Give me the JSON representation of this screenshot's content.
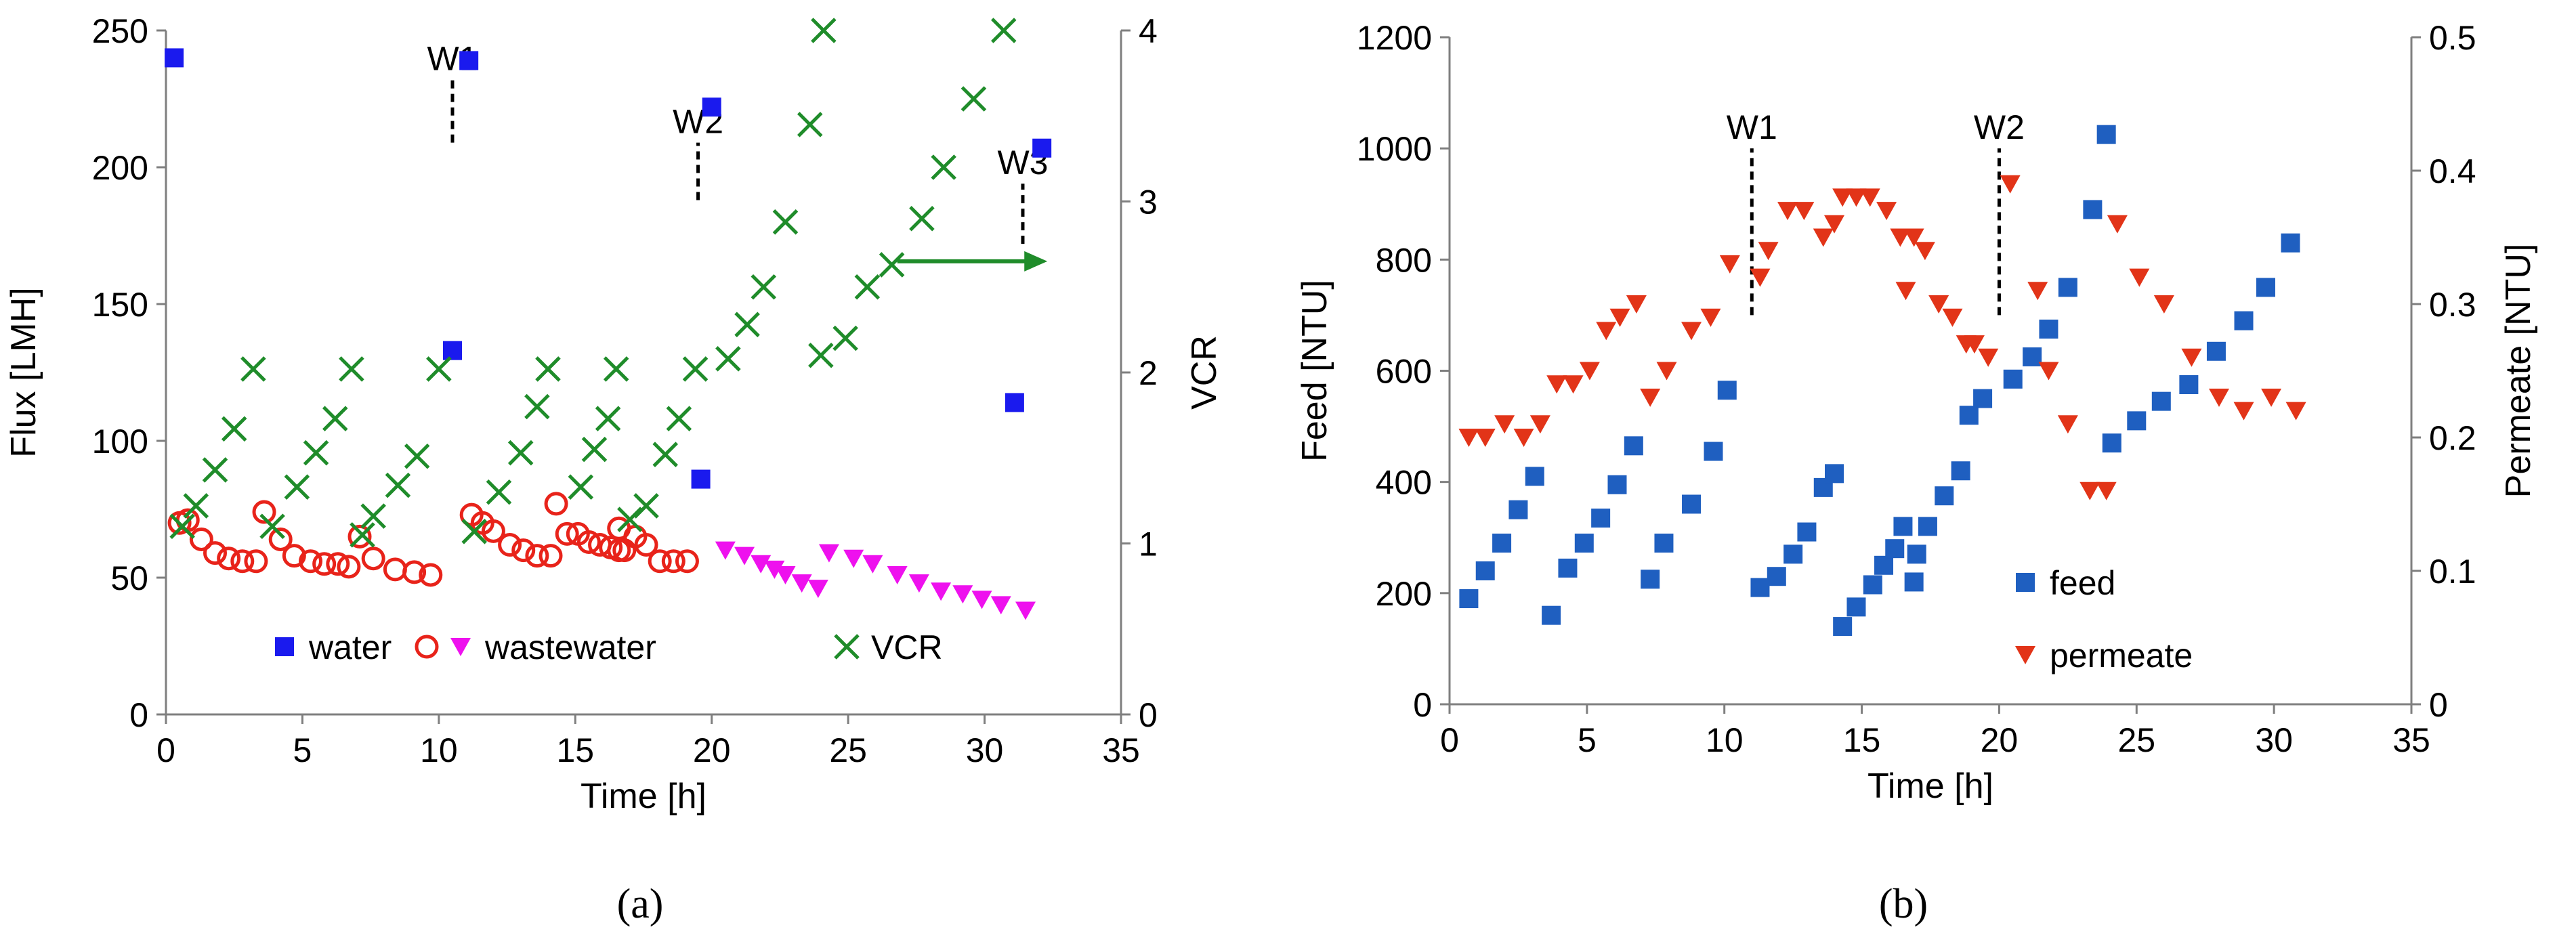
{
  "figure": {
    "panel_a_label": "(a)",
    "panel_b_label": "(b)"
  },
  "colors": {
    "water": "#1a1aee",
    "wastewater_circle": "#e8231a",
    "wastewater_triangle": "#ee11ee",
    "vcr": "#1f8c2a",
    "arrow": "#1f8c2a",
    "feed": "#1f5fc0",
    "permeate": "#e23418",
    "axis": "#7f7f7f"
  },
  "chart_data": [
    {
      "type": "scatter",
      "panel": "a",
      "xlabel": "Time [h]",
      "ylabel": "Flux [LMH]",
      "y2label": "VCR",
      "xlim": [
        0,
        35
      ],
      "ylim": [
        0,
        250
      ],
      "y2lim": [
        0,
        4
      ],
      "xticks": [
        "0",
        "5",
        "10",
        "15",
        "20",
        "25",
        "30",
        "35"
      ],
      "yticks": [
        "0",
        "50",
        "100",
        "150",
        "200",
        "250"
      ],
      "y2ticks": [
        "0",
        "1",
        "2",
        "3",
        "4"
      ],
      "grid": false,
      "legend": [
        "water",
        "wastewater",
        "VCR"
      ],
      "annotations": [
        {
          "label": "W1",
          "x": 10.5,
          "y_from": 209,
          "y_to": 232
        },
        {
          "label": "W2",
          "x": 19.5,
          "y_from": 188,
          "y_to": 209
        },
        {
          "label": "W3",
          "x": 31.4,
          "y_from": 172,
          "y_to": 194
        }
      ],
      "arrow": {
        "from": [
          26.8,
          2.65
        ],
        "to": [
          32.3,
          2.65
        ],
        "axis": "y2"
      },
      "series": [
        {
          "name": "water",
          "marker": "square",
          "axis": "y",
          "points": [
            [
              0.3,
              240
            ],
            [
              11.1,
              239
            ],
            [
              20.0,
              222
            ],
            [
              32.1,
              207
            ],
            [
              10.5,
              133
            ],
            [
              19.6,
              86
            ],
            [
              31.1,
              114
            ]
          ]
        },
        {
          "name": "wastewater",
          "marker": "circle-open",
          "axis": "y",
          "points": [
            [
              0.5,
              70
            ],
            [
              0.8,
              71
            ],
            [
              1.3,
              64
            ],
            [
              1.8,
              59
            ],
            [
              2.3,
              57
            ],
            [
              2.8,
              56
            ],
            [
              3.3,
              56
            ],
            [
              3.6,
              74
            ],
            [
              4.2,
              64
            ],
            [
              4.7,
              58
            ],
            [
              5.3,
              56
            ],
            [
              5.8,
              55
            ],
            [
              6.3,
              55
            ],
            [
              6.7,
              54
            ],
            [
              7.1,
              65
            ],
            [
              7.6,
              57
            ],
            [
              8.4,
              53
            ],
            [
              9.1,
              52
            ],
            [
              9.7,
              51
            ],
            [
              11.2,
              73
            ],
            [
              11.6,
              70
            ],
            [
              12.0,
              67
            ],
            [
              12.6,
              62
            ],
            [
              13.1,
              60
            ],
            [
              13.6,
              58
            ],
            [
              14.1,
              58
            ],
            [
              14.3,
              77
            ],
            [
              14.7,
              66
            ],
            [
              15.1,
              66
            ],
            [
              15.5,
              63
            ],
            [
              15.9,
              62
            ],
            [
              16.3,
              61
            ],
            [
              16.6,
              60
            ],
            [
              16.6,
              68
            ],
            [
              16.8,
              60
            ],
            [
              17.2,
              65
            ],
            [
              17.6,
              62
            ],
            [
              18.1,
              56
            ],
            [
              18.6,
              56
            ],
            [
              19.1,
              56
            ]
          ]
        },
        {
          "name": "wastewater",
          "marker": "triangle-down",
          "axis": "y",
          "points": [
            [
              20.5,
              60
            ],
            [
              21.2,
              58
            ],
            [
              21.8,
              55
            ],
            [
              22.3,
              53
            ],
            [
              22.7,
              51
            ],
            [
              23.3,
              48
            ],
            [
              23.9,
              46
            ],
            [
              24.3,
              59
            ],
            [
              25.2,
              57
            ],
            [
              25.9,
              55
            ],
            [
              26.8,
              51
            ],
            [
              27.6,
              48
            ],
            [
              28.4,
              45
            ],
            [
              29.2,
              44
            ],
            [
              29.9,
              42
            ],
            [
              30.6,
              40
            ],
            [
              31.5,
              38
            ]
          ]
        },
        {
          "name": "VCR",
          "marker": "x",
          "axis": "y2",
          "points": [
            [
              0.6,
              1.1
            ],
            [
              1.1,
              1.22
            ],
            [
              1.8,
              1.43
            ],
            [
              2.5,
              1.67
            ],
            [
              3.2,
              2.02
            ],
            [
              3.9,
              1.1
            ],
            [
              4.8,
              1.33
            ],
            [
              5.5,
              1.53
            ],
            [
              6.2,
              1.73
            ],
            [
              6.8,
              2.02
            ],
            [
              7.2,
              1.05
            ],
            [
              7.6,
              1.16
            ],
            [
              8.5,
              1.34
            ],
            [
              9.2,
              1.51
            ],
            [
              10.0,
              2.02
            ],
            [
              11.3,
              1.07
            ],
            [
              12.2,
              1.3
            ],
            [
              13.0,
              1.53
            ],
            [
              13.6,
              1.8
            ],
            [
              14.0,
              2.02
            ],
            [
              15.2,
              1.33
            ],
            [
              15.7,
              1.55
            ],
            [
              16.2,
              1.73
            ],
            [
              16.5,
              2.02
            ],
            [
              17.0,
              1.14
            ],
            [
              17.6,
              1.22
            ],
            [
              18.3,
              1.52
            ],
            [
              18.8,
              1.73
            ],
            [
              19.4,
              2.02
            ],
            [
              20.6,
              2.08
            ],
            [
              21.3,
              2.28
            ],
            [
              21.9,
              2.5
            ],
            [
              22.7,
              2.88
            ],
            [
              23.6,
              3.45
            ],
            [
              24.1,
              4.0
            ],
            [
              24.0,
              2.1
            ],
            [
              24.9,
              2.2
            ],
            [
              25.7,
              2.5
            ],
            [
              26.6,
              2.63
            ],
            [
              27.7,
              2.9
            ],
            [
              28.5,
              3.2
            ],
            [
              29.6,
              3.6
            ],
            [
              30.7,
              4.0
            ]
          ]
        }
      ]
    },
    {
      "type": "scatter",
      "panel": "b",
      "xlabel": "Time [h]",
      "ylabel": "Feed [NTU]",
      "y2label": "Permeate [NTU]",
      "xlim": [
        0,
        35
      ],
      "ylim": [
        0,
        1200
      ],
      "y2lim": [
        0,
        0.5
      ],
      "xticks": [
        "0",
        "5",
        "10",
        "15",
        "20",
        "25",
        "30",
        "35"
      ],
      "yticks": [
        "0",
        "200",
        "400",
        "600",
        "800",
        "1000",
        "1200"
      ],
      "y2ticks": [
        "0",
        "0.1",
        "0.2",
        "0.3",
        "0.4",
        "0.5"
      ],
      "grid": false,
      "legend": [
        "feed",
        "permeate"
      ],
      "annotations": [
        {
          "label": "W1",
          "x": 11.0,
          "y_from": 700,
          "y_to": 1000
        },
        {
          "label": "W2",
          "x": 20.0,
          "y_from": 700,
          "y_to": 1000
        }
      ],
      "series": [
        {
          "name": "feed",
          "marker": "square",
          "axis": "y",
          "points": [
            [
              0.7,
              190
            ],
            [
              1.3,
              240
            ],
            [
              1.9,
              290
            ],
            [
              2.5,
              350
            ],
            [
              3.1,
              410
            ],
            [
              3.7,
              160
            ],
            [
              4.3,
              245
            ],
            [
              4.9,
              290
            ],
            [
              5.5,
              335
            ],
            [
              6.1,
              395
            ],
            [
              6.7,
              465
            ],
            [
              7.3,
              225
            ],
            [
              7.8,
              290
            ],
            [
              8.8,
              360
            ],
            [
              9.6,
              455
            ],
            [
              10.1,
              565
            ],
            [
              11.3,
              210
            ],
            [
              11.9,
              230
            ],
            [
              12.5,
              270
            ],
            [
              13.0,
              310
            ],
            [
              13.6,
              390
            ],
            [
              14.0,
              415
            ],
            [
              14.3,
              140
            ],
            [
              14.8,
              175
            ],
            [
              15.4,
              215
            ],
            [
              15.8,
              250
            ],
            [
              16.2,
              280
            ],
            [
              16.5,
              320
            ],
            [
              16.9,
              220
            ],
            [
              17.0,
              270
            ],
            [
              17.4,
              320
            ],
            [
              18.0,
              375
            ],
            [
              18.6,
              420
            ],
            [
              18.9,
              520
            ],
            [
              19.4,
              550
            ],
            [
              20.5,
              585
            ],
            [
              21.2,
              625
            ],
            [
              21.8,
              675
            ],
            [
              22.5,
              750
            ],
            [
              23.4,
              890
            ],
            [
              23.9,
              1025
            ],
            [
              24.1,
              470
            ],
            [
              25.0,
              510
            ],
            [
              25.9,
              545
            ],
            [
              26.9,
              575
            ],
            [
              27.9,
              635
            ],
            [
              28.9,
              690
            ],
            [
              29.7,
              750
            ],
            [
              30.6,
              830
            ]
          ]
        },
        {
          "name": "permeate",
          "marker": "triangle-down",
          "axis": "y2",
          "points": [
            [
              0.7,
              0.2
            ],
            [
              1.3,
              0.2
            ],
            [
              2.0,
              0.21
            ],
            [
              2.7,
              0.2
            ],
            [
              3.3,
              0.21
            ],
            [
              3.9,
              0.24
            ],
            [
              4.5,
              0.24
            ],
            [
              5.1,
              0.25
            ],
            [
              5.7,
              0.28
            ],
            [
              6.2,
              0.29
            ],
            [
              6.8,
              0.3
            ],
            [
              7.3,
              0.23
            ],
            [
              7.9,
              0.25
            ],
            [
              8.8,
              0.28
            ],
            [
              9.5,
              0.29
            ],
            [
              10.2,
              0.33
            ],
            [
              11.3,
              0.32
            ],
            [
              11.6,
              0.34
            ],
            [
              12.3,
              0.37
            ],
            [
              12.9,
              0.37
            ],
            [
              13.6,
              0.35
            ],
            [
              14.0,
              0.36
            ],
            [
              14.3,
              0.38
            ],
            [
              14.8,
              0.38
            ],
            [
              15.3,
              0.38
            ],
            [
              15.9,
              0.37
            ],
            [
              16.4,
              0.35
            ],
            [
              16.6,
              0.31
            ],
            [
              16.9,
              0.35
            ],
            [
              17.3,
              0.34
            ],
            [
              17.8,
              0.3
            ],
            [
              18.3,
              0.29
            ],
            [
              18.8,
              0.27
            ],
            [
              19.1,
              0.27
            ],
            [
              19.6,
              0.26
            ],
            [
              20.4,
              0.39
            ],
            [
              21.4,
              0.31
            ],
            [
              21.8,
              0.25
            ],
            [
              22.5,
              0.21
            ],
            [
              23.3,
              0.16
            ],
            [
              23.9,
              0.16
            ],
            [
              24.3,
              0.36
            ],
            [
              25.1,
              0.32
            ],
            [
              26.0,
              0.3
            ],
            [
              27.0,
              0.26
            ],
            [
              28.0,
              0.23
            ],
            [
              28.9,
              0.22
            ],
            [
              29.9,
              0.23
            ],
            [
              30.8,
              0.22
            ]
          ]
        }
      ]
    }
  ]
}
